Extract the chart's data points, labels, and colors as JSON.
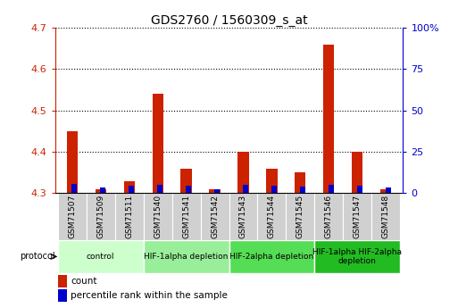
{
  "title": "GDS2760 / 1560309_s_at",
  "samples": [
    "GSM71507",
    "GSM71509",
    "GSM71511",
    "GSM71540",
    "GSM71541",
    "GSM71542",
    "GSM71543",
    "GSM71544",
    "GSM71545",
    "GSM71546",
    "GSM71547",
    "GSM71548"
  ],
  "count_values": [
    4.45,
    4.31,
    4.33,
    4.54,
    4.36,
    4.31,
    4.4,
    4.36,
    4.35,
    4.66,
    4.4,
    4.31
  ],
  "percentile_values": [
    5.5,
    3.5,
    4.5,
    5.0,
    4.5,
    2.5,
    5.0,
    4.5,
    4.0,
    5.0,
    4.5,
    3.5
  ],
  "ymin": 4.3,
  "ymax": 4.7,
  "yticks": [
    4.3,
    4.4,
    4.5,
    4.6,
    4.7
  ],
  "right_yticks": [
    0,
    25,
    50,
    75,
    100
  ],
  "bar_color_red": "#cc2200",
  "bar_color_blue": "#0000cc",
  "group_labels": [
    "control",
    "HIF-1alpha depletion",
    "HIF-2alpha depletion",
    "HIF-1alpha HIF-2alpha\ndepletion"
  ],
  "group_starts": [
    0,
    3,
    6,
    9
  ],
  "group_ends": [
    3,
    6,
    9,
    12
  ],
  "group_colors": [
    "#ccffcc",
    "#99ee99",
    "#55dd55",
    "#22bb22"
  ],
  "left_axis_color": "#cc2200",
  "right_axis_color": "#0000cc",
  "background_color": "#ffffff",
  "grid_color": "#000000",
  "xtick_bg": "#d0d0d0"
}
